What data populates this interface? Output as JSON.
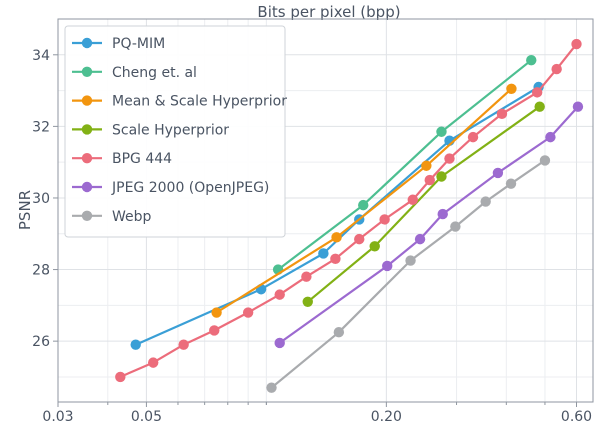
{
  "chart_data": {
    "type": "line",
    "title": "Bits per pixel (bpp)",
    "xlabel": "",
    "ylabel": "PSNR",
    "x_scale": "log",
    "xlim": [
      0.03,
      0.66
    ],
    "ylim": [
      24.3,
      35.0
    ],
    "x_ticks": [
      0.03,
      0.05,
      0.2,
      0.6
    ],
    "x_tick_labels": [
      "0.03",
      "0.05",
      "0.20",
      "0.60"
    ],
    "y_ticks": [
      26,
      28,
      30,
      32,
      34
    ],
    "y_tick_labels": [
      "26",
      "28",
      "30",
      "32",
      "34"
    ],
    "grid": true,
    "legend_position": "upper-left",
    "series": [
      {
        "name": "PQ-MIM",
        "color": "#3a9fd6",
        "x": [
          0.047,
          0.097,
          0.139,
          0.171,
          0.288,
          0.482
        ],
        "y": [
          25.9,
          27.45,
          28.45,
          29.4,
          31.6,
          33.1
        ]
      },
      {
        "name": "Cheng et. al",
        "color": "#4dbf91",
        "x": [
          0.107,
          0.175,
          0.275,
          0.462
        ],
        "y": [
          28.0,
          29.8,
          31.85,
          33.85
        ]
      },
      {
        "name": "Mean & Scale Hyperprior",
        "color": "#f2950f",
        "x": [
          0.075,
          0.15,
          0.252,
          0.412
        ],
        "y": [
          26.8,
          28.9,
          30.9,
          33.05
        ]
      },
      {
        "name": "Scale Hyperprior",
        "color": "#82b115",
        "x": [
          0.127,
          0.187,
          0.275,
          0.485
        ],
        "y": [
          27.1,
          28.65,
          30.6,
          32.55
        ]
      },
      {
        "name": "BPG 444",
        "color": "#ec6c7b",
        "x": [
          0.043,
          0.052,
          0.062,
          0.074,
          0.09,
          0.108,
          0.126,
          0.149,
          0.171,
          0.198,
          0.233,
          0.257,
          0.288,
          0.33,
          0.39,
          0.478,
          0.535,
          0.6
        ],
        "y": [
          25.0,
          25.4,
          25.9,
          26.3,
          26.8,
          27.3,
          27.8,
          28.3,
          28.85,
          29.4,
          29.95,
          30.5,
          31.1,
          31.7,
          32.35,
          32.95,
          33.6,
          34.3
        ]
      },
      {
        "name": "JPEG 2000 (OpenJPEG)",
        "color": "#9c6ad0",
        "x": [
          0.108,
          0.201,
          0.243,
          0.277,
          0.381,
          0.516,
          0.605
        ],
        "y": [
          25.95,
          28.1,
          28.85,
          29.55,
          30.7,
          31.7,
          32.55
        ]
      },
      {
        "name": "Webp",
        "color": "#a9abae",
        "x": [
          0.103,
          0.152,
          0.23,
          0.298,
          0.355,
          0.411,
          0.5
        ],
        "y": [
          24.7,
          26.25,
          28.25,
          29.2,
          29.9,
          30.4,
          31.05
        ]
      }
    ]
  }
}
